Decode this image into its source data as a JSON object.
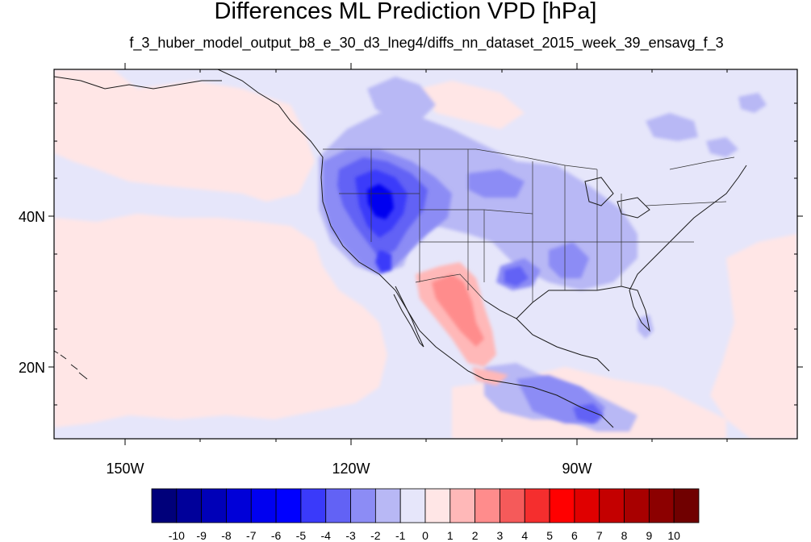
{
  "title": "Differences ML Prediction VPD [hPa]",
  "subtitle": "f_3_huber_model_output_b8_e_30_d3_lneg4/diffs_nn_dataset_2015_week_39_ensavg_f_3",
  "lat_labels": [
    "40N",
    "20N"
  ],
  "lon_labels": [
    "150W",
    "120W",
    "90W"
  ],
  "colorbar": {
    "labels": [
      "-10",
      "-9",
      "-8",
      "-7",
      "-6",
      "-5",
      "-4",
      "-3",
      "-2",
      "-1",
      "0",
      "1",
      "2",
      "3",
      "4",
      "5",
      "6",
      "7",
      "8",
      "9",
      "10"
    ],
    "colors": [
      "#00007a",
      "#00009a",
      "#0000b8",
      "#0000d8",
      "#0000f0",
      "#0000ff",
      "#3a3afa",
      "#6262f5",
      "#8c8cf5",
      "#b8b8f5",
      "#e6e6fa",
      "#ffe6e6",
      "#ffb8b8",
      "#ff8c8c",
      "#f55a5a",
      "#f52e2e",
      "#ff0000",
      "#e00000",
      "#c40000",
      "#a80000",
      "#8c0000",
      "#700000"
    ]
  },
  "colors": {
    "background_field": "#e6e6fa",
    "positive_light": "#ffe6e6",
    "negative_light": "#b8b8f5",
    "coastline": "#1a1a1a"
  }
}
